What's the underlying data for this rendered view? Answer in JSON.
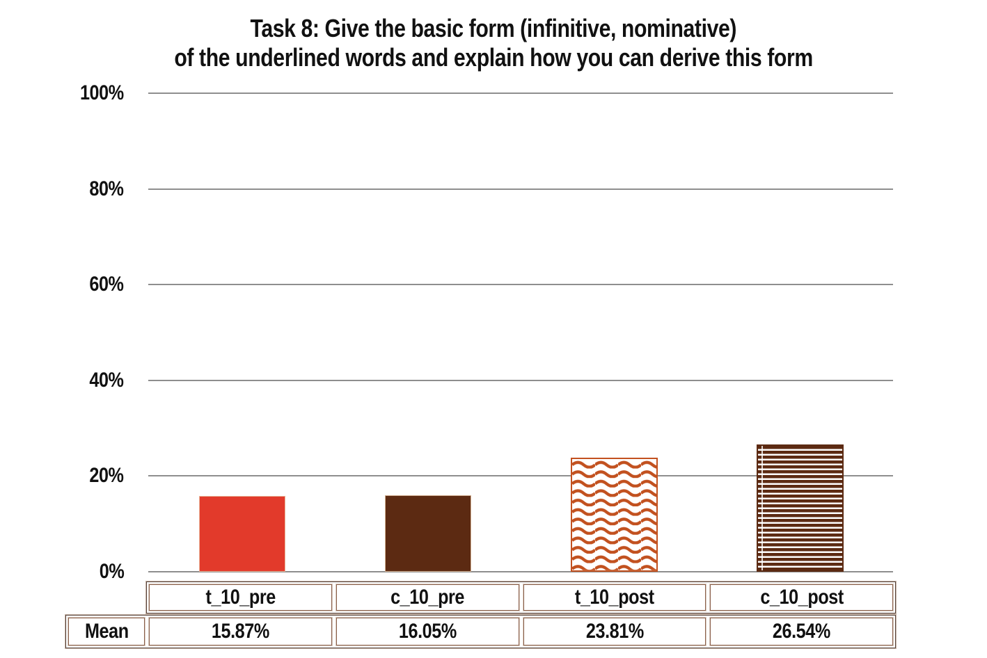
{
  "title": {
    "line1": "Task 8: Give the basic form (infinitive, nominative)",
    "line2": "of the underlined words and explain how you can derive this form"
  },
  "chart_data": {
    "type": "bar",
    "title": "Task 8: Give the basic form (infinitive, nominative) of the underlined words and explain how you can derive this form",
    "categories": [
      "t_10_pre",
      "c_10_pre",
      "t_10_post",
      "c_10_post"
    ],
    "values": [
      15.87,
      16.05,
      23.81,
      26.54
    ],
    "value_labels": [
      "15.87%",
      "16.05%",
      "23.81%",
      "26.54%"
    ],
    "xlabel": "",
    "ylabel": "",
    "ylim": [
      0,
      100
    ],
    "ytick_step": 20,
    "ytick_labels": [
      "0%",
      "20%",
      "40%",
      "60%",
      "80%",
      "100%"
    ],
    "grid": true,
    "legend": false,
    "bar_fills": [
      {
        "style": "solid",
        "color": "#e23a2b"
      },
      {
        "style": "solid",
        "color": "#5c2a12"
      },
      {
        "style": "wave",
        "color": "#c2511f"
      },
      {
        "style": "hstripes",
        "color": "#5c2a12"
      }
    ]
  },
  "table": {
    "row_label": "Mean",
    "columns": [
      "t_10_pre",
      "c_10_pre",
      "t_10_post",
      "c_10_post"
    ],
    "values": [
      "15.87%",
      "16.05%",
      "23.81%",
      "26.54%"
    ]
  },
  "colors": {
    "background": "#ffffff",
    "text": "#111111",
    "gridline": "#8e8e8e",
    "bar_red": "#e23a2b",
    "bar_brown": "#5c2a12",
    "bar_wave_orange": "#c2511f",
    "table_border_dark": "#8a5f4a",
    "table_border_light": "#d8cabf",
    "table_frame_dark": "#55423a",
    "table_frame_light": "#c6b3a6"
  }
}
